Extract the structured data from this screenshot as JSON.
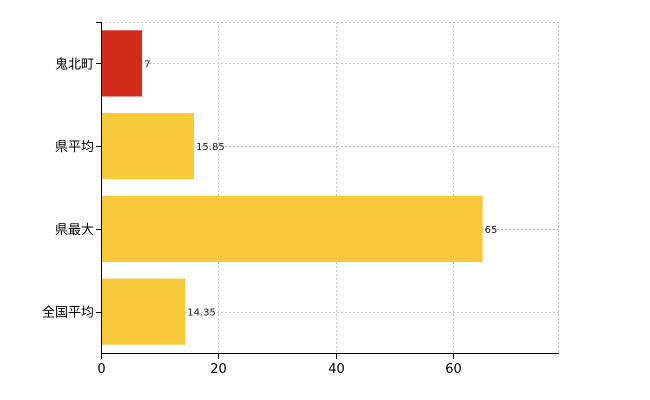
{
  "chart_data": {
    "type": "bar",
    "orientation": "horizontal",
    "title": "",
    "xlabel": "",
    "ylabel": "",
    "categories": [
      "鬼北町",
      "県平均",
      "県最大",
      "全国平均"
    ],
    "values": [
      7,
      15.85,
      65,
      14.35
    ],
    "value_labels": [
      "7",
      "15.85",
      "65",
      "14.35"
    ],
    "bar_colors": [
      "#d02b1b",
      "#f9c93c",
      "#f9c93c",
      "#f9c93c"
    ],
    "xlim": [
      0,
      78
    ],
    "xticks": [
      0,
      20,
      40,
      60
    ],
    "grid": "vertical dashed",
    "legend": "none"
  }
}
